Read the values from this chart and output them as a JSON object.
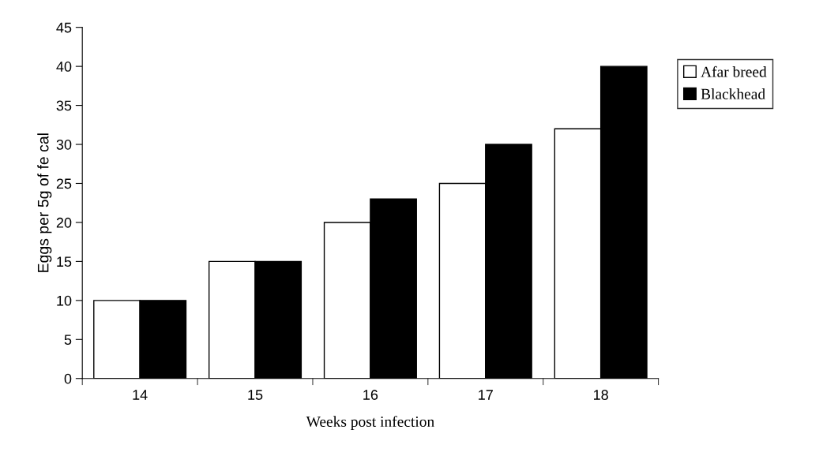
{
  "chart_data": {
    "type": "bar",
    "xlabel": "Weeks post infection",
    "ylabel": "Eggs per 5g of fe cal",
    "categories": [
      "14",
      "15",
      "16",
      "17",
      "18"
    ],
    "series": [
      {
        "name": "Afar breed",
        "color": "#ffffff",
        "values": [
          10,
          15,
          20,
          25,
          32
        ]
      },
      {
        "name": "Blackhead",
        "color": "#000000",
        "values": [
          10,
          15,
          23,
          30,
          40
        ]
      }
    ],
    "ylim": [
      0,
      45
    ],
    "yticks": [
      0,
      5,
      10,
      15,
      20,
      25,
      30,
      35,
      40,
      45
    ],
    "grid": false,
    "legend": "right"
  }
}
